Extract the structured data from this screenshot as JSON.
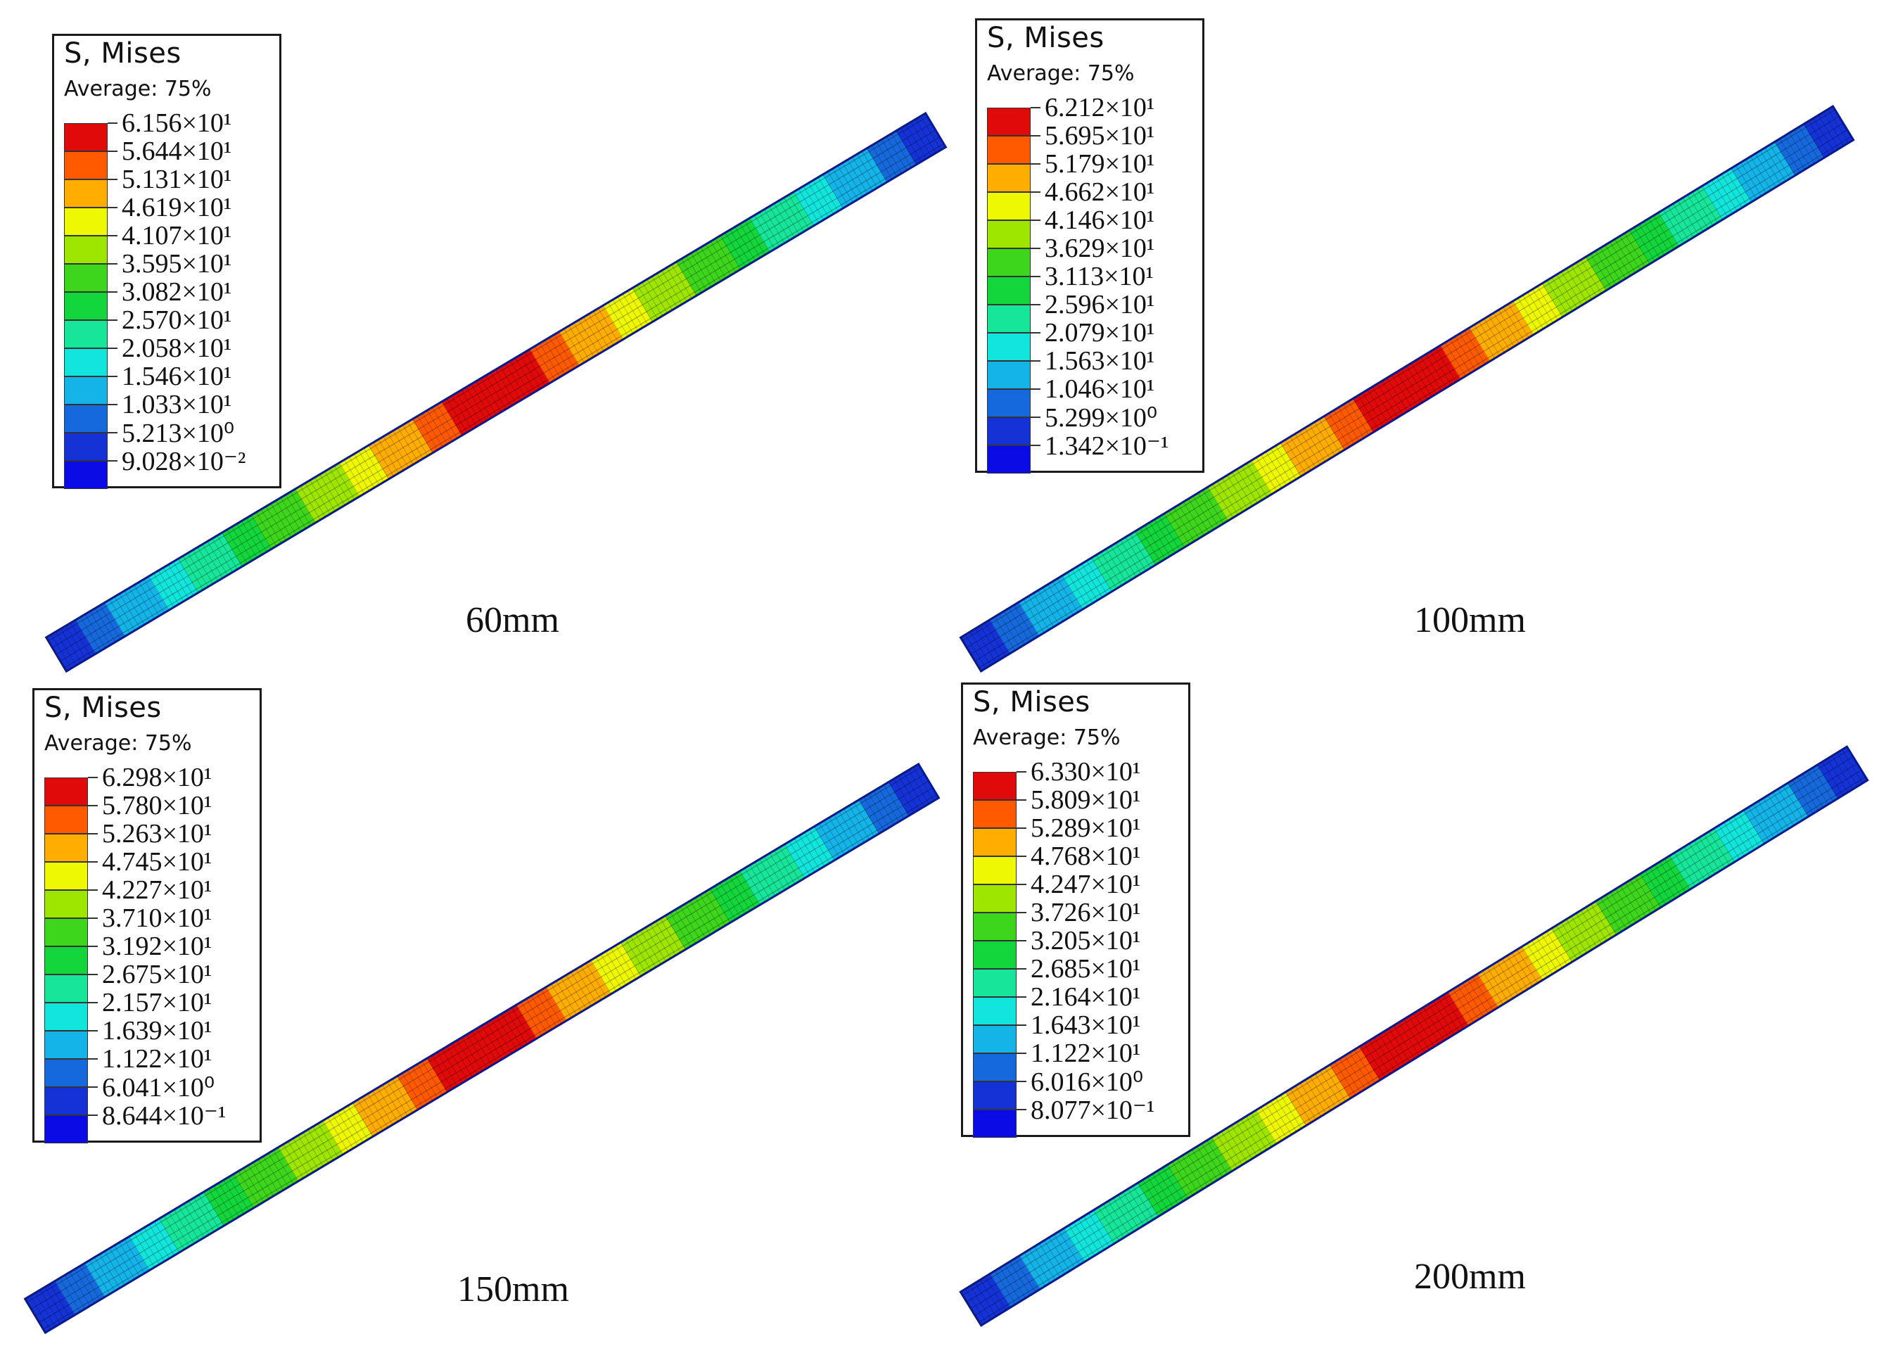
{
  "colors": [
    "#e10a0a",
    "#ff5a00",
    "#ffad00",
    "#eef800",
    "#9ee600",
    "#3ed61c",
    "#13d63c",
    "#16e59a",
    "#11e5dc",
    "#14b3e8",
    "#1669dc",
    "#1432d6",
    "#0b0be6"
  ],
  "panels": [
    {
      "title": "S, Mises",
      "subtitle": "Average: 75%",
      "caption": "60mm",
      "labels": [
        "6.156×10¹",
        "5.644×10¹",
        "5.131×10¹",
        "4.619×10¹",
        "4.107×10¹",
        "3.595×10¹",
        "3.082×10¹",
        "2.570×10¹",
        "2.058×10¹",
        "1.546×10¹",
        "1.033×10¹",
        "5.213×10⁰",
        "9.028×10⁻²"
      ]
    },
    {
      "title": "S, Mises",
      "subtitle": "Average: 75%",
      "caption": "100mm",
      "labels": [
        "6.212×10¹",
        "5.695×10¹",
        "5.179×10¹",
        "4.662×10¹",
        "4.146×10¹",
        "3.629×10¹",
        "3.113×10¹",
        "2.596×10¹",
        "2.079×10¹",
        "1.563×10¹",
        "1.046×10¹",
        "5.299×10⁰",
        "1.342×10⁻¹"
      ]
    },
    {
      "title": "S, Mises",
      "subtitle": "Average: 75%",
      "caption": "150mm",
      "labels": [
        "6.298×10¹",
        "5.780×10¹",
        "5.263×10¹",
        "4.745×10¹",
        "4.227×10¹",
        "3.710×10¹",
        "3.192×10¹",
        "2.675×10¹",
        "2.157×10¹",
        "1.639×10¹",
        "1.122×10¹",
        "6.041×10⁰",
        "8.644×10⁻¹"
      ]
    },
    {
      "title": "S, Mises",
      "subtitle": "Average: 75%",
      "caption": "200mm",
      "labels": [
        "6.330×10¹",
        "5.809×10¹",
        "5.289×10¹",
        "4.768×10¹",
        "4.247×10¹",
        "3.726×10¹",
        "3.205×10¹",
        "2.685×10¹",
        "2.164×10¹",
        "1.643×10¹",
        "1.122×10¹",
        "6.016×10⁰",
        "8.077×10⁻¹"
      ]
    }
  ]
}
